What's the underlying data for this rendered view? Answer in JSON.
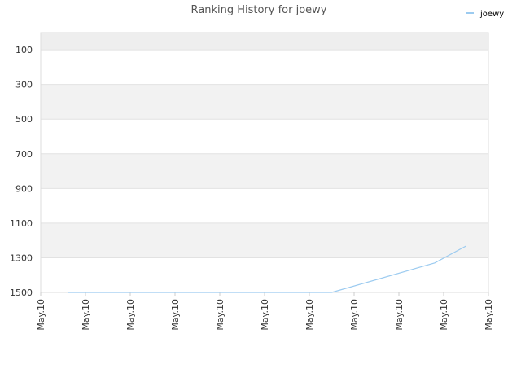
{
  "chart_data": {
    "type": "line",
    "title": "Ranking History for joewy",
    "x": [
      0.6,
      6.5,
      8.8,
      9.5
    ],
    "series": [
      {
        "name": "joewy",
        "color": "#9ccbf0",
        "values": [
          1500,
          1500,
          1330,
          1232
        ]
      }
    ],
    "xlim": [
      0,
      10
    ],
    "xticks": [
      {
        "value": 0,
        "label": "May.10"
      },
      {
        "value": 1,
        "label": "May.10"
      },
      {
        "value": 2,
        "label": "May.10"
      },
      {
        "value": 3,
        "label": "May.10"
      },
      {
        "value": 4,
        "label": "May.10"
      },
      {
        "value": 5,
        "label": "May.10"
      },
      {
        "value": 6,
        "label": "May.10"
      },
      {
        "value": 7,
        "label": "May.10"
      },
      {
        "value": 8,
        "label": "May.10"
      },
      {
        "value": 9,
        "label": "May.10"
      },
      {
        "value": 10,
        "label": "May.10"
      }
    ],
    "ylim": [
      1500,
      1
    ],
    "yticks": [
      100,
      300,
      500,
      700,
      900,
      1100,
      1300,
      1500
    ],
    "grid": true,
    "legend": "top-right"
  }
}
